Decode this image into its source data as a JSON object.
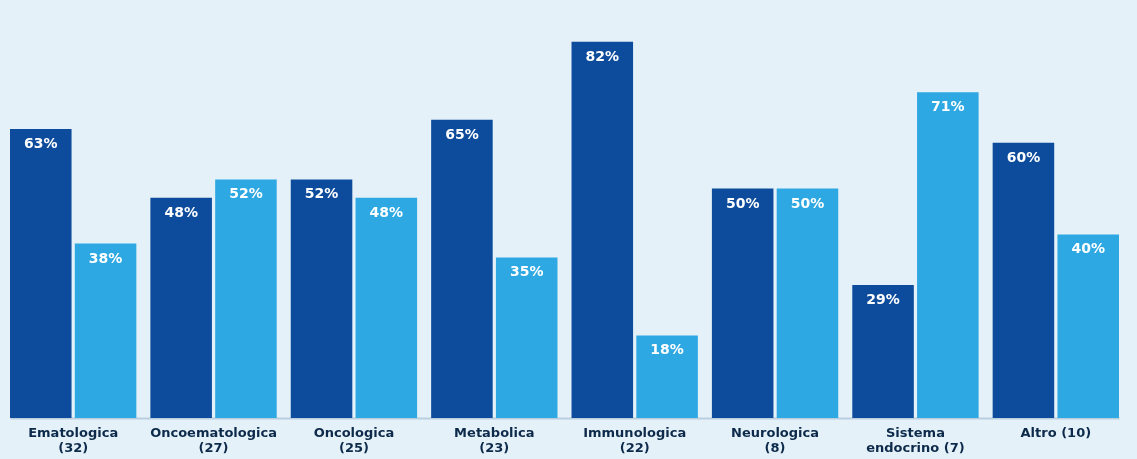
{
  "chart_data": {
    "type": "bar",
    "categories": [
      "Ematologica (32)",
      "Oncoematologica (27)",
      "Oncologica (25)",
      "Metabolica (23)",
      "Immunologica (22)",
      "Neurologica (8)",
      "Sistema endocrino (7)",
      "Altro (10)"
    ],
    "series": [
      {
        "color": "#0d4c9c",
        "values": [
          63,
          48,
          52,
          65,
          82,
          50,
          29,
          60
        ],
        "value_labels": [
          "63%",
          "48%",
          "52%",
          "65%",
          "82%",
          "50%",
          "29%",
          "60%"
        ]
      },
      {
        "color": "#2ea8e2",
        "values": [
          38,
          52,
          48,
          35,
          18,
          50,
          71,
          40
        ],
        "value_labels": [
          "38%",
          "52%",
          "48%",
          "35%",
          "18%",
          "50%",
          "71%",
          "40%"
        ]
      }
    ],
    "legend": false,
    "grid": false
  }
}
